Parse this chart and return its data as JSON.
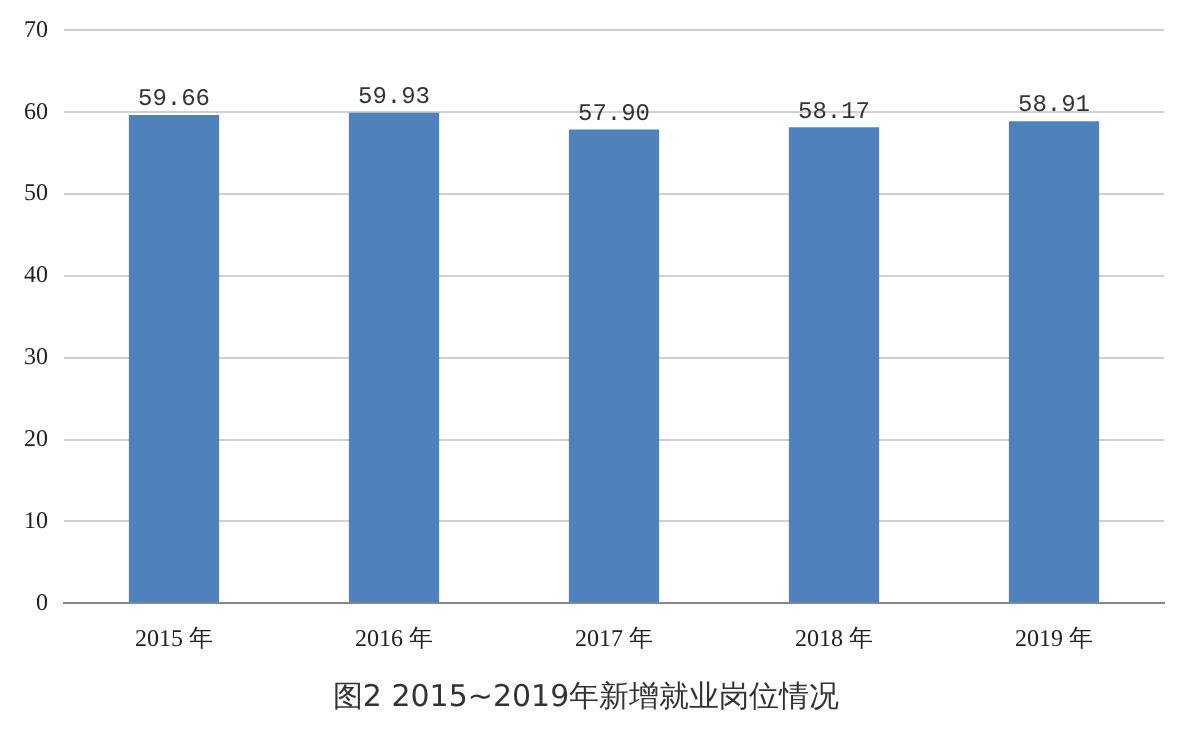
{
  "chart_data": {
    "type": "bar",
    "title": "图2 2015~2019年新增就业岗位情况",
    "categories": [
      "2015 年",
      "2016 年",
      "2017 年",
      "2018 年",
      "2019 年"
    ],
    "values": [
      59.66,
      59.93,
      57.9,
      58.17,
      58.91
    ],
    "value_labels": [
      "59.66",
      "59.93",
      "57.90",
      "58.17",
      "58.91"
    ],
    "color": "#4f81bd",
    "ylim": [
      0,
      70
    ],
    "yticks": [
      0,
      10,
      20,
      30,
      40,
      50,
      60,
      70
    ],
    "grid": "y"
  }
}
